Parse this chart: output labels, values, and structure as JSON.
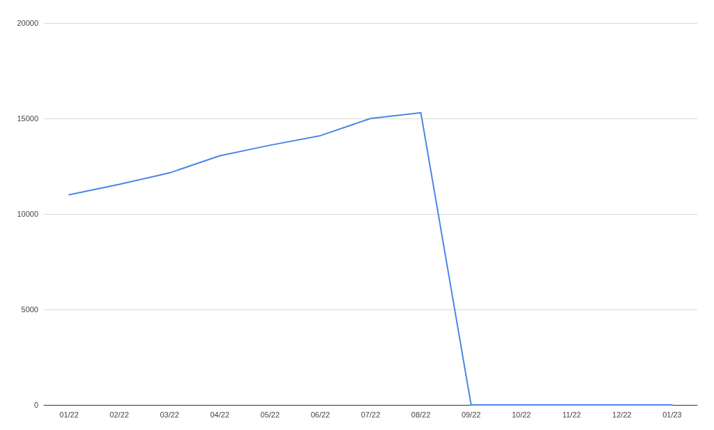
{
  "chart_data": {
    "type": "line",
    "categories": [
      "01/22",
      "02/22",
      "03/22",
      "04/22",
      "05/22",
      "06/22",
      "07/22",
      "08/22",
      "09/22",
      "10/22",
      "11/22",
      "12/22",
      "01/23"
    ],
    "series": [
      {
        "color": "#4a86e8",
        "values": [
          11000,
          11550,
          12150,
          13050,
          13600,
          14100,
          15000,
          15300,
          0,
          0,
          0,
          0,
          0
        ]
      }
    ],
    "ylim": [
      0,
      20000
    ],
    "yticks": [
      0,
      5000,
      10000,
      15000,
      20000
    ],
    "grid": "y",
    "marker": "none",
    "line_style": "solid"
  }
}
